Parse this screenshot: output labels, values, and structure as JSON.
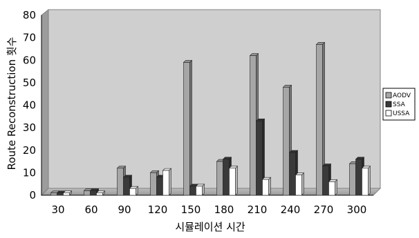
{
  "chart_data": {
    "type": "bar",
    "categories": [
      "30",
      "60",
      "90",
      "120",
      "150",
      "180",
      "210",
      "240",
      "270",
      "300"
    ],
    "series": [
      {
        "name": "AODV",
        "values": [
          1,
          2,
          12,
          10,
          59,
          15,
          62,
          48,
          67,
          14
        ],
        "color": "#a6a6a6"
      },
      {
        "name": "SSA",
        "values": [
          1,
          2,
          8,
          8,
          4,
          16,
          33,
          19,
          13,
          16
        ],
        "color": "#3a3a3a"
      },
      {
        "name": "USSA",
        "values": [
          1,
          1,
          3,
          11,
          4,
          12,
          7,
          9,
          6,
          12
        ],
        "color": "#ffffff"
      }
    ],
    "xlabel": "시뮬레이션 시간",
    "ylabel": "Route Reconstruction 횟수",
    "ylim": [
      0,
      80
    ],
    "yticks": [
      0,
      10,
      20,
      30,
      40,
      50,
      60,
      70,
      80
    ],
    "grid": false,
    "legend": "right",
    "plot_background": "#c8c8c8"
  }
}
